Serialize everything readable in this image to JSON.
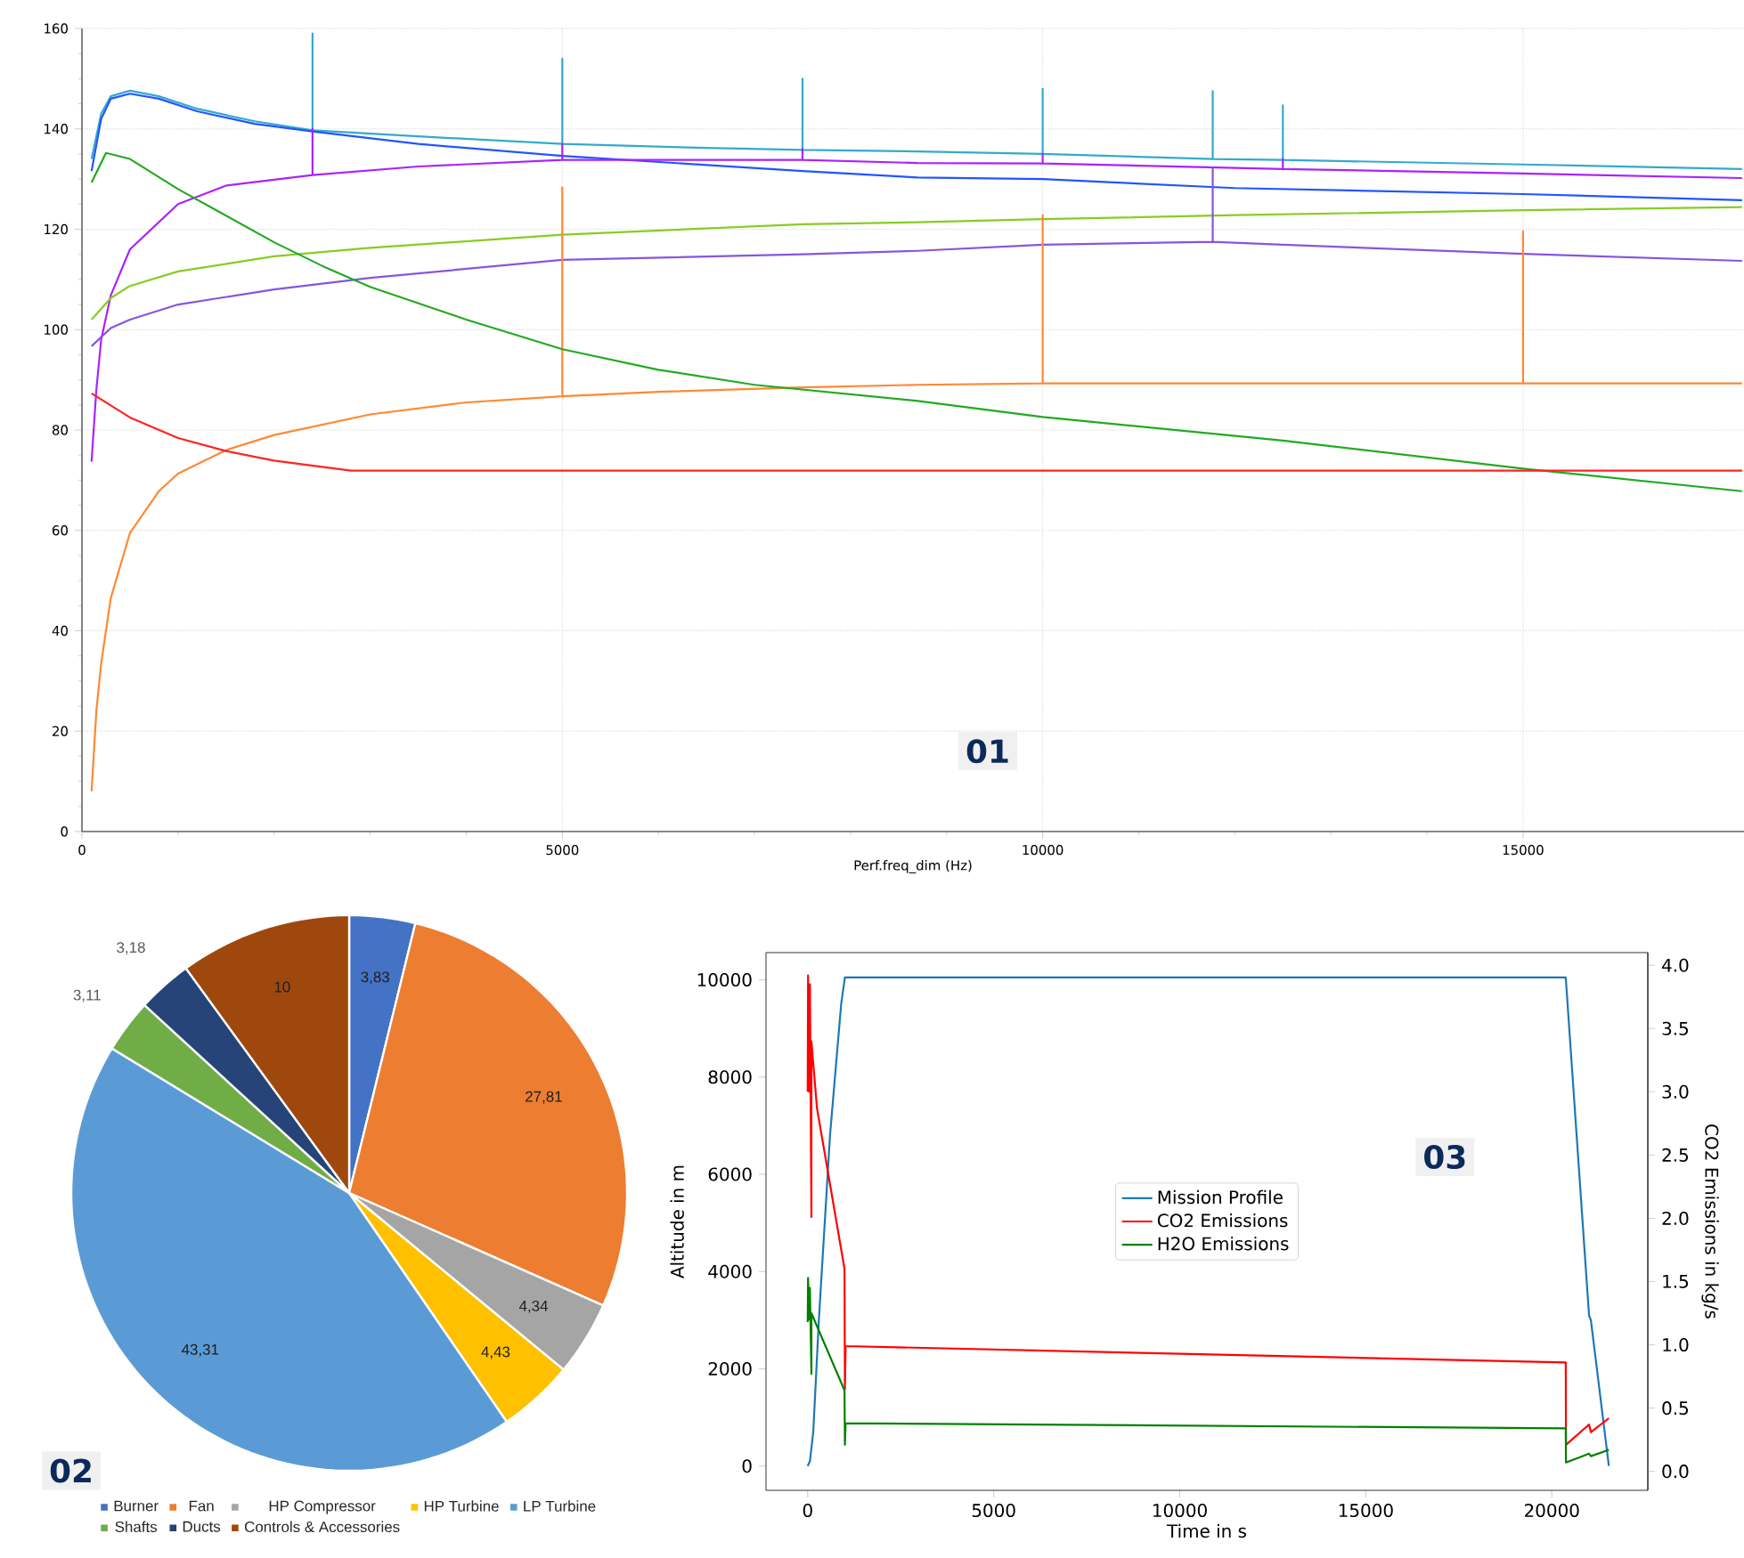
{
  "chart_data": [
    {
      "type": "line",
      "xlabel": "Perf.freq_dim (Hz)",
      "xlim": [
        0,
        17300
      ],
      "ylim": [
        0,
        160
      ],
      "xticks": [
        0,
        5000,
        10000,
        15000
      ],
      "yticks": [
        0,
        20,
        40,
        60,
        80,
        100,
        120,
        140,
        160
      ],
      "grid": true,
      "annotations": [
        "01"
      ],
      "series": [
        {
          "color": "#33aacc",
          "x": [
            100,
            200,
            300,
            500,
            800,
            1200,
            1800,
            2400,
            2400,
            2400,
            3500,
            5000,
            5000,
            5000,
            6500,
            7500,
            7500,
            7500,
            8700,
            10000,
            10000,
            10000,
            11770,
            11770,
            11770,
            12500,
            12500,
            12500,
            15000,
            17280
          ],
          "values": [
            134,
            143,
            146.5,
            147.6,
            146.5,
            144,
            141.5,
            139.7,
            159,
            139.7,
            138.5,
            137,
            154,
            137,
            136.2,
            135.8,
            150,
            135.8,
            135.5,
            135,
            148,
            135,
            134,
            147.5,
            134,
            133.8,
            144.7,
            133.8,
            132.9,
            132
          ]
        },
        {
          "color": "#2255ff",
          "x": [
            100,
            200,
            300,
            500,
            800,
            1200,
            1800,
            2400,
            3500,
            5000,
            7500,
            8700,
            10000,
            12000,
            15000,
            17280
          ],
          "values": [
            131.6,
            142,
            146,
            147,
            146,
            143.5,
            141,
            139.5,
            137,
            134.6,
            131.6,
            130.3,
            130,
            128.2,
            127,
            125.8
          ]
        },
        {
          "color": "#aa22ff",
          "x": [
            100,
            150,
            200,
            300,
            500,
            1000,
            1500,
            2400,
            2400,
            2400,
            3500,
            5000,
            5000,
            5000,
            7500,
            7500,
            7500,
            8700,
            10000,
            10000,
            10000,
            12500,
            12500,
            12500,
            15000,
            17280
          ],
          "values": [
            73.7,
            88,
            98,
            106.8,
            116,
            125,
            128.7,
            130.8,
            140,
            130.8,
            132.5,
            133.8,
            137,
            133.8,
            133.8,
            136,
            133.8,
            133.2,
            133.1,
            135,
            133.1,
            132,
            134,
            132,
            131.1,
            130.2
          ]
        },
        {
          "color": "#88cc22",
          "x": [
            100,
            300,
            500,
            1000,
            2000,
            3000,
            5000,
            7500,
            8700,
            10000,
            12000,
            15000,
            17280
          ],
          "values": [
            102,
            106.3,
            108.7,
            111.6,
            114.6,
            116.3,
            118.9,
            121,
            121.4,
            122,
            122.8,
            123.8,
            124.4
          ]
        },
        {
          "color": "#8855dd",
          "x": [
            100,
            300,
            500,
            1000,
            2000,
            3000,
            5000,
            7500,
            8700,
            10000,
            11770,
            11770,
            11770,
            12500,
            15000,
            17280
          ],
          "values": [
            96.7,
            100.3,
            102,
            105,
            108,
            110.3,
            113.9,
            115,
            115.7,
            116.9,
            117.5,
            132.3,
            117.5,
            116.9,
            115.1,
            113.7
          ]
        },
        {
          "color": "#ff8833",
          "x": [
            100,
            150,
            200,
            300,
            500,
            800,
            1000,
            1500,
            2000,
            3000,
            4000,
            5000,
            5000,
            5000,
            6000,
            7500,
            8700,
            10000,
            10000,
            10000,
            15000,
            15000,
            15000,
            17280
          ],
          "values": [
            8,
            24,
            33.5,
            46.5,
            59.5,
            67.8,
            71.3,
            76,
            79,
            83.1,
            85.5,
            86.7,
            128.3,
            86.7,
            87.6,
            88.5,
            89,
            89.3,
            122.8,
            89.3,
            89.3,
            119.6,
            89.3,
            89.3
          ]
        },
        {
          "color": "#22aa22",
          "x": [
            100,
            250,
            500,
            1000,
            1500,
            2000,
            2500,
            3000,
            4000,
            5000,
            6000,
            7000,
            8700,
            10000,
            12500,
            15000,
            17280
          ],
          "values": [
            129.3,
            135.2,
            134,
            128,
            122.7,
            117.4,
            112.7,
            108.5,
            102,
            96.1,
            92,
            89,
            85.8,
            82.6,
            77.9,
            72.3,
            67.8
          ]
        },
        {
          "color": "#ff2222",
          "x": [
            100,
            300,
            500,
            1000,
            1500,
            2000,
            2800,
            17280
          ],
          "values": [
            87.3,
            84.9,
            82.5,
            78.4,
            75.8,
            73.9,
            71.9,
            71.9
          ]
        }
      ]
    },
    {
      "type": "pie",
      "categories": [
        "Burner",
        "Fan",
        "HP Compressor",
        "HP Turbine",
        "LP Turbine",
        "Shafts",
        "Ducts",
        "Controls & Accessories"
      ],
      "values": [
        3.83,
        27.81,
        4.34,
        4.43,
        43.31,
        3.11,
        3.18,
        10
      ],
      "colors": [
        "#4472c4",
        "#ed7d31",
        "#a5a5a5",
        "#ffc000",
        "#5b9bd5",
        "#70ad47",
        "#264478",
        "#9e480e"
      ],
      "value_labels": [
        "3,83",
        "27,81",
        "4,34",
        "4,43",
        "43,31",
        "3,11",
        "3,18",
        "10"
      ],
      "legend": "bottom",
      "annotations": [
        "02"
      ]
    },
    {
      "type": "line",
      "xlabel": "Time in s",
      "ylabel": "Altitude in m",
      "y2label": "CO2 Emissions in kg/s",
      "xlim": [
        -1120,
        22580
      ],
      "ylim": [
        -500,
        10560
      ],
      "y2lim": [
        -0.15,
        4.1
      ],
      "xticks": [
        0,
        5000,
        10000,
        15000,
        20000
      ],
      "yticks": [
        0,
        2000,
        4000,
        6000,
        8000,
        10000
      ],
      "y2ticks": [
        {
          "value": 0,
          "label": "0.0"
        },
        {
          "value": 0.5,
          "label": "0.5"
        },
        {
          "value": 1,
          "label": "1.0"
        },
        {
          "value": 1.5,
          "label": "1.5"
        },
        {
          "value": 2,
          "label": "2.0"
        },
        {
          "value": 2.5,
          "label": "2.5"
        },
        {
          "value": 3,
          "label": "3.0"
        },
        {
          "value": 3.5,
          "label": "3.5"
        },
        {
          "value": 4,
          "label": "4.0"
        }
      ],
      "legend": "center",
      "annotations": [
        "03"
      ],
      "series": [
        {
          "name": "Mission Profile",
          "color": "#1f77b4",
          "x": [
            0,
            60,
            150,
            300,
            600,
            900,
            1000,
            20374,
            21000,
            21050,
            21533
          ],
          "values": [
            0,
            100,
            700,
            3000,
            6800,
            9500,
            10050,
            10050,
            3100,
            3000,
            0
          ]
        },
        {
          "name": "CO2 Emissions",
          "color": "#ff0000",
          "axis": "y2",
          "x": [
            0,
            10,
            40,
            60,
            100,
            100,
            250,
            990,
            1000,
            1020,
            20374,
            20380,
            21000,
            21050,
            21533
          ],
          "values": [
            3.0,
            3.92,
            3.0,
            3.85,
            2.01,
            3.4,
            2.87,
            1.6,
            0.65,
            0.99,
            0.86,
            0.21,
            0.37,
            0.31,
            0.42
          ]
        },
        {
          "name": "H2O Emissions",
          "color": "#008000",
          "axis": "y2",
          "x": [
            0,
            10,
            40,
            60,
            100,
            100,
            990,
            1000,
            1020,
            20374,
            20380,
            21000,
            21050,
            21533
          ],
          "values": [
            1.18,
            1.53,
            1.2,
            1.45,
            0.77,
            1.25,
            0.64,
            0.21,
            0.38,
            0.34,
            0.07,
            0.14,
            0.12,
            0.17
          ]
        }
      ]
    }
  ]
}
